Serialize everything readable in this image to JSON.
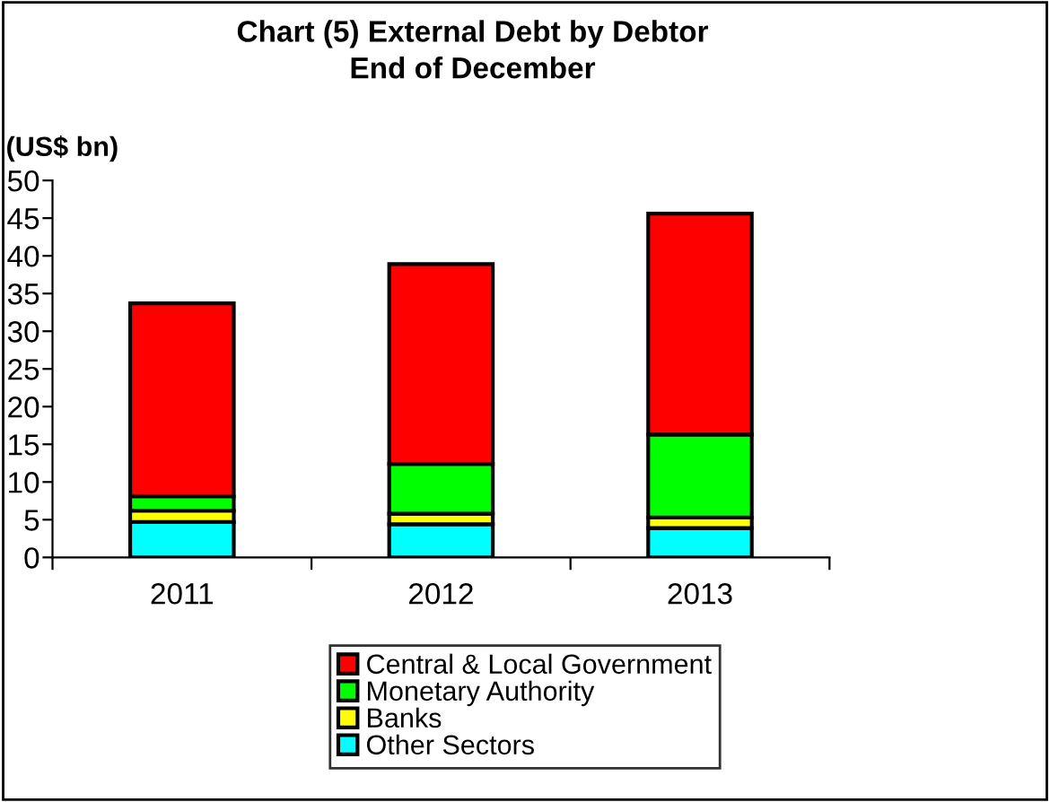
{
  "chart_data": {
    "type": "bar",
    "title": "Chart (5) External Debt by Debtor\nEnd of December",
    "ylabel": "(US$ bn)",
    "categories": [
      "2011",
      "2012",
      "2013"
    ],
    "stacked": true,
    "series": [
      {
        "name": "Other Sectors",
        "color": "#00ffff",
        "values": [
          4.7,
          4.4,
          3.9
        ]
      },
      {
        "name": "Banks",
        "color": "#ffff00",
        "values": [
          1.5,
          1.4,
          1.4
        ]
      },
      {
        "name": "Monetary Authority",
        "color": "#00ff00",
        "values": [
          1.9,
          6.6,
          11.0
        ]
      },
      {
        "name": "Central & Local Government",
        "color": "#ff0000",
        "values": [
          25.6,
          26.5,
          29.3
        ]
      }
    ],
    "ylim": [
      0,
      50
    ],
    "yticks": [
      0,
      5,
      10,
      15,
      20,
      25,
      30,
      35,
      40,
      45,
      50
    ],
    "grid": false,
    "legend": "bottom"
  }
}
